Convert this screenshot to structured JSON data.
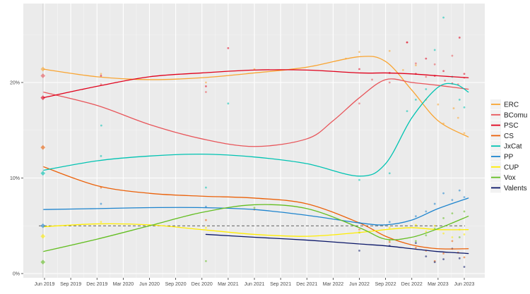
{
  "chart_data": {
    "type": "line",
    "title": "",
    "xlabel": "",
    "ylabel": "",
    "x_ticks": [
      "Jun 2019",
      "Sep 2019",
      "Dec 2019",
      "Mar 2020",
      "Jun 2020",
      "Sep 2020",
      "Dec 2020",
      "Mar 2021",
      "Jun 2021",
      "Sep 2021",
      "Dec 2021",
      "Mar 2022",
      "Jun 2022",
      "Sep 2022",
      "Dec 2022",
      "Mar 2023",
      "Jun 2023"
    ],
    "y_ticks": [
      "0%",
      "10%",
      "20%"
    ],
    "ylim": [
      0,
      28
    ],
    "xlim": [
      "2019-04-22",
      "2023-07-20"
    ],
    "threshold_line": 5,
    "grid": true,
    "legend_position": "right",
    "election": {
      "date": "2019-05-26",
      "results": [
        {
          "party": "ERC",
          "value": 21.4
        },
        {
          "party": "BComu",
          "value": 20.7
        },
        {
          "party": "PSC",
          "value": 18.4
        },
        {
          "party": "CS",
          "value": 13.2
        },
        {
          "party": "JxCat",
          "value": 10.5
        },
        {
          "party": "PP",
          "value": 5.0
        },
        {
          "party": "CUP",
          "value": 3.9
        },
        {
          "party": "Vox",
          "value": 1.2
        }
      ]
    },
    "series": [
      {
        "name": "ERC",
        "color": "#f9a533",
        "trend": [
          [
            "2019-05-26",
            21.4
          ],
          [
            "2019-12-01",
            20.6
          ],
          [
            "2020-06-01",
            20.3
          ],
          [
            "2020-12-01",
            20.5
          ],
          [
            "2021-06-01",
            21.0
          ],
          [
            "2021-12-01",
            21.6
          ],
          [
            "2022-06-01",
            22.7
          ],
          [
            "2022-09-01",
            22.2
          ],
          [
            "2022-12-01",
            19.2
          ],
          [
            "2023-03-01",
            16.0
          ],
          [
            "2023-06-15",
            14.3
          ]
        ],
        "polls": [
          [
            "2019-12-15",
            20.9
          ],
          [
            "2020-12-15",
            20.0
          ],
          [
            "2021-06-01",
            21.4
          ],
          [
            "2022-04-15",
            22.5
          ],
          [
            "2022-06-01",
            23.2
          ],
          [
            "2022-09-15",
            23.3
          ],
          [
            "2022-11-01",
            21.3
          ],
          [
            "2022-12-15",
            21.8
          ],
          [
            "2023-01-20",
            18.2
          ],
          [
            "2023-03-01",
            17.7
          ],
          [
            "2023-03-20",
            15.7
          ],
          [
            "2023-04-25",
            17.3
          ],
          [
            "2023-05-10",
            16.3
          ],
          [
            "2023-06-01",
            14.7
          ]
        ]
      },
      {
        "name": "BComu",
        "color": "#e8555a",
        "trend": [
          [
            "2019-05-26",
            19.0
          ],
          [
            "2019-12-01",
            17.6
          ],
          [
            "2020-06-01",
            15.6
          ],
          [
            "2020-12-01",
            14.1
          ],
          [
            "2021-06-01",
            13.3
          ],
          [
            "2021-12-01",
            14.1
          ],
          [
            "2022-03-01",
            16.0
          ],
          [
            "2022-06-01",
            18.4
          ],
          [
            "2022-09-01",
            20.3
          ],
          [
            "2022-12-01",
            20.0
          ],
          [
            "2023-03-01",
            19.7
          ],
          [
            "2023-06-15",
            19.3
          ]
        ],
        "polls": [
          [
            "2019-12-15",
            19.8
          ],
          [
            "2020-12-15",
            19.0
          ],
          [
            "2022-06-01",
            17.8
          ],
          [
            "2022-07-15",
            20.3
          ],
          [
            "2022-09-15",
            20.0
          ],
          [
            "2022-11-15",
            24.2
          ],
          [
            "2022-12-15",
            22.0
          ],
          [
            "2023-01-20",
            20.6
          ],
          [
            "2023-02-20",
            21.9
          ],
          [
            "2023-03-25",
            20.2
          ],
          [
            "2023-04-20",
            22.8
          ],
          [
            "2023-05-10",
            19.8
          ],
          [
            "2023-06-01",
            20.5
          ]
        ]
      },
      {
        "name": "PSC",
        "color": "#e0001b",
        "trend": [
          [
            "2019-05-26",
            18.4
          ],
          [
            "2019-12-01",
            19.6
          ],
          [
            "2020-06-01",
            20.6
          ],
          [
            "2020-12-01",
            21.0
          ],
          [
            "2021-06-01",
            21.3
          ],
          [
            "2021-12-01",
            21.3
          ],
          [
            "2022-06-01",
            21.0
          ],
          [
            "2022-09-01",
            21.0
          ],
          [
            "2022-12-01",
            20.9
          ],
          [
            "2023-03-01",
            20.7
          ],
          [
            "2023-06-15",
            20.5
          ]
        ],
        "polls": [
          [
            "2019-12-15",
            20.7
          ],
          [
            "2020-12-15",
            19.6
          ],
          [
            "2021-03-01",
            23.6
          ],
          [
            "2022-06-01",
            21.4
          ],
          [
            "2022-09-15",
            21.0
          ],
          [
            "2022-11-15",
            24.2
          ],
          [
            "2022-12-15",
            20.9
          ],
          [
            "2023-01-20",
            22.5
          ],
          [
            "2023-02-20",
            20.7
          ],
          [
            "2023-03-20",
            21.2
          ],
          [
            "2023-04-20",
            19.9
          ],
          [
            "2023-05-15",
            24.7
          ],
          [
            "2023-06-01",
            20.9
          ]
        ]
      },
      {
        "name": "CS",
        "color": "#eb6109",
        "trend": [
          [
            "2019-05-26",
            11.2
          ],
          [
            "2019-12-01",
            9.2
          ],
          [
            "2020-06-01",
            8.4
          ],
          [
            "2020-12-01",
            8.1
          ],
          [
            "2021-06-01",
            7.9
          ],
          [
            "2021-12-01",
            7.3
          ],
          [
            "2022-06-01",
            5.3
          ],
          [
            "2022-09-01",
            3.9
          ],
          [
            "2022-12-01",
            3.0
          ],
          [
            "2023-03-01",
            2.6
          ],
          [
            "2023-06-15",
            2.6
          ]
        ],
        "polls": [
          [
            "2019-12-15",
            9.0
          ],
          [
            "2020-12-15",
            5.6
          ],
          [
            "2021-06-01",
            6.7
          ],
          [
            "2022-06-01",
            4.6
          ],
          [
            "2022-09-15",
            3.3
          ],
          [
            "2022-12-15",
            2.7
          ],
          [
            "2023-01-20",
            2.4
          ],
          [
            "2023-02-20",
            1.3
          ],
          [
            "2023-03-20",
            2.1
          ],
          [
            "2023-04-20",
            3.4
          ],
          [
            "2023-05-10",
            2.2
          ],
          [
            "2023-06-01",
            1.7
          ]
        ]
      },
      {
        "name": "JxCat",
        "color": "#00c3b2",
        "trend": [
          [
            "2019-05-26",
            10.8
          ],
          [
            "2019-12-01",
            11.8
          ],
          [
            "2020-06-01",
            12.3
          ],
          [
            "2020-12-01",
            12.5
          ],
          [
            "2021-06-01",
            12.2
          ],
          [
            "2021-12-01",
            11.5
          ],
          [
            "2022-06-01",
            10.2
          ],
          [
            "2022-09-01",
            11.5
          ],
          [
            "2022-12-01",
            16.3
          ],
          [
            "2023-03-01",
            19.5
          ],
          [
            "2023-05-01",
            19.8
          ],
          [
            "2023-06-15",
            19.0
          ]
        ],
        "polls": [
          [
            "2019-12-15",
            12.3
          ],
          [
            "2019-12-16",
            15.5
          ],
          [
            "2020-12-15",
            9.0
          ],
          [
            "2021-03-01",
            17.8
          ],
          [
            "2022-06-01",
            9.8
          ],
          [
            "2022-09-15",
            10.5
          ],
          [
            "2022-11-15",
            17.0
          ],
          [
            "2022-12-15",
            18.2
          ],
          [
            "2023-01-20",
            19.3
          ],
          [
            "2023-02-20",
            23.4
          ],
          [
            "2023-03-20",
            26.8
          ],
          [
            "2023-04-20",
            20.6
          ],
          [
            "2023-05-15",
            18.2
          ],
          [
            "2023-06-01",
            17.4
          ]
        ]
      },
      {
        "name": "PP",
        "color": "#1d84ce",
        "trend": [
          [
            "2019-05-26",
            6.7
          ],
          [
            "2019-12-01",
            6.8
          ],
          [
            "2020-06-01",
            6.9
          ],
          [
            "2020-12-01",
            6.9
          ],
          [
            "2021-06-01",
            6.7
          ],
          [
            "2021-12-01",
            6.1
          ],
          [
            "2022-06-01",
            5.3
          ],
          [
            "2022-09-01",
            5.1
          ],
          [
            "2022-12-01",
            5.6
          ],
          [
            "2023-03-01",
            6.8
          ],
          [
            "2023-06-15",
            7.9
          ]
        ],
        "polls": [
          [
            "2019-12-15",
            7.3
          ],
          [
            "2020-12-15",
            7.0
          ],
          [
            "2022-06-01",
            5.3
          ],
          [
            "2022-09-15",
            5.4
          ],
          [
            "2022-12-15",
            6.0
          ],
          [
            "2023-01-20",
            6.5
          ],
          [
            "2023-02-20",
            7.3
          ],
          [
            "2023-03-20",
            8.4
          ],
          [
            "2023-04-20",
            7.7
          ],
          [
            "2023-05-15",
            8.7
          ],
          [
            "2023-06-01",
            8.0
          ]
        ]
      },
      {
        "name": "CUP",
        "color": "#ffed00",
        "trend": [
          [
            "2019-05-26",
            4.9
          ],
          [
            "2019-12-01",
            5.2
          ],
          [
            "2020-06-01",
            5.1
          ],
          [
            "2020-12-01",
            4.6
          ],
          [
            "2021-06-01",
            4.1
          ],
          [
            "2021-12-01",
            3.9
          ],
          [
            "2022-06-01",
            4.3
          ],
          [
            "2022-09-01",
            4.6
          ],
          [
            "2022-12-01",
            4.8
          ],
          [
            "2023-03-01",
            4.6
          ],
          [
            "2023-06-15",
            4.6
          ]
        ],
        "polls": [
          [
            "2019-12-15",
            5.4
          ],
          [
            "2020-12-15",
            4.8
          ],
          [
            "2022-06-01",
            4.3
          ],
          [
            "2022-09-15",
            4.8
          ],
          [
            "2022-12-15",
            5.1
          ],
          [
            "2023-01-20",
            4.4
          ],
          [
            "2023-02-20",
            5.0
          ],
          [
            "2023-03-20",
            4.2
          ],
          [
            "2023-04-20",
            3.8
          ],
          [
            "2023-05-15",
            4.6
          ],
          [
            "2023-06-01",
            4.1
          ]
        ]
      },
      {
        "name": "Vox",
        "color": "#63be21",
        "trend": [
          [
            "2019-05-26",
            2.3
          ],
          [
            "2019-12-01",
            3.6
          ],
          [
            "2020-06-01",
            5.0
          ],
          [
            "2020-12-01",
            6.4
          ],
          [
            "2021-06-01",
            7.2
          ],
          [
            "2021-12-01",
            6.8
          ],
          [
            "2022-06-01",
            4.8
          ],
          [
            "2022-09-01",
            3.6
          ],
          [
            "2022-12-01",
            3.8
          ],
          [
            "2023-03-01",
            4.7
          ],
          [
            "2023-06-15",
            6.0
          ]
        ],
        "polls": [
          [
            "2020-12-15",
            1.3
          ],
          [
            "2021-06-01",
            6.9
          ],
          [
            "2022-06-01",
            4.3
          ],
          [
            "2022-09-15",
            3.5
          ],
          [
            "2022-12-15",
            3.4
          ],
          [
            "2023-01-20",
            4.0
          ],
          [
            "2023-02-20",
            4.7
          ],
          [
            "2023-03-20",
            5.8
          ],
          [
            "2023-04-20",
            6.3
          ],
          [
            "2023-05-15",
            3.8
          ],
          [
            "2023-06-01",
            6.5
          ]
        ]
      },
      {
        "name": "Valents",
        "color": "#0a1668",
        "trend": [
          [
            "2020-12-15",
            4.1
          ],
          [
            "2021-06-01",
            3.8
          ],
          [
            "2021-12-01",
            3.5
          ],
          [
            "2022-06-01",
            3.1
          ],
          [
            "2022-09-01",
            2.9
          ],
          [
            "2022-12-01",
            2.6
          ],
          [
            "2023-03-01",
            2.3
          ],
          [
            "2023-06-15",
            2.1
          ]
        ],
        "polls": [
          [
            "2022-06-01",
            2.4
          ],
          [
            "2022-09-15",
            2.9
          ],
          [
            "2022-12-15",
            3.2
          ],
          [
            "2023-01-20",
            1.8
          ],
          [
            "2023-02-20",
            1.2
          ],
          [
            "2023-03-20",
            1.5
          ],
          [
            "2023-04-20",
            2.6
          ],
          [
            "2023-05-15",
            1.6
          ],
          [
            "2023-06-01",
            0.7
          ]
        ]
      }
    ]
  }
}
